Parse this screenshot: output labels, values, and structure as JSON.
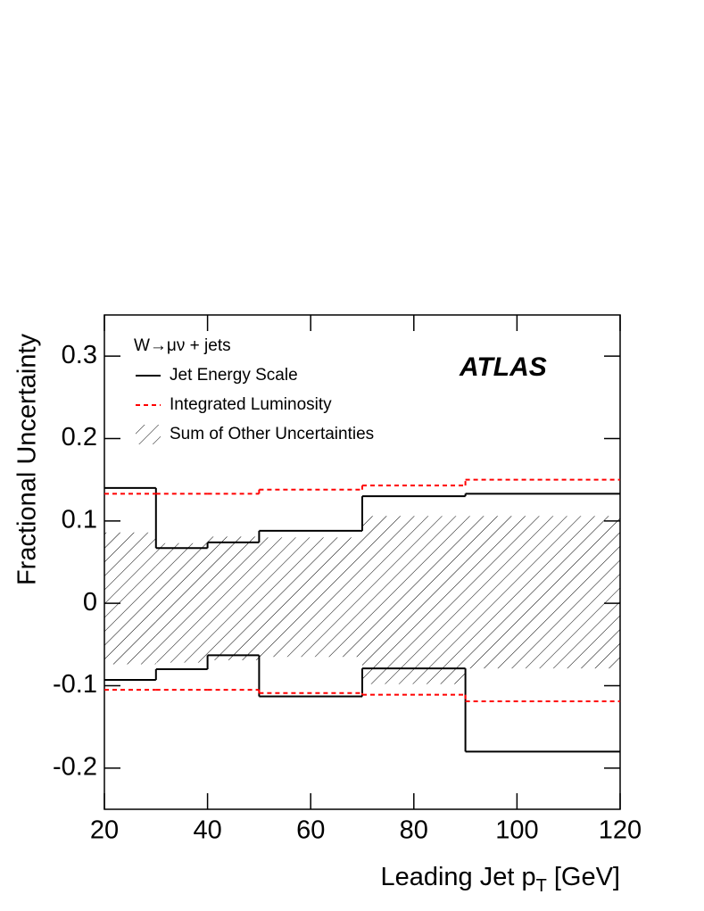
{
  "chart_data": {
    "type": "step",
    "xlabel": "Leading Jet p",
    "xlabel_sub": "T",
    "xlabel_unit": "[GeV]",
    "ylabel": "Fractional Uncertainty",
    "legend_title": "W→μν + jets",
    "annotation": "ATLAS",
    "bins": [
      20,
      30,
      40,
      50,
      70,
      90,
      120
    ],
    "series": [
      {
        "name": "Jet Energy Scale",
        "color": "#000000",
        "style": "solid",
        "upper": [
          0.14,
          0.067,
          0.074,
          0.088,
          0.13,
          0.133
        ],
        "lower": [
          -0.093,
          -0.08,
          -0.063,
          -0.113,
          -0.079,
          -0.18
        ]
      },
      {
        "name": "Integrated Luminosity",
        "color": "#ff0000",
        "style": "dashed",
        "upper": [
          0.133,
          0.133,
          0.133,
          0.138,
          0.143,
          0.15
        ],
        "lower": [
          -0.105,
          -0.105,
          -0.105,
          -0.109,
          -0.111,
          -0.119
        ]
      },
      {
        "name": "Sum of Other Uncertainties",
        "color": "#000000",
        "style": "hatched",
        "upper": [
          0.086,
          0.073,
          0.081,
          0.08,
          0.106,
          0.106
        ],
        "lower": [
          -0.074,
          -0.072,
          -0.069,
          -0.065,
          -0.098,
          -0.079
        ]
      }
    ],
    "xlim": [
      20,
      120
    ],
    "xticks": [
      20,
      40,
      60,
      80,
      100,
      120
    ],
    "ylim": [
      -0.25,
      0.35
    ],
    "yticks": [
      -0.2,
      -0.1,
      0,
      0.1,
      0.2,
      0.3
    ]
  }
}
